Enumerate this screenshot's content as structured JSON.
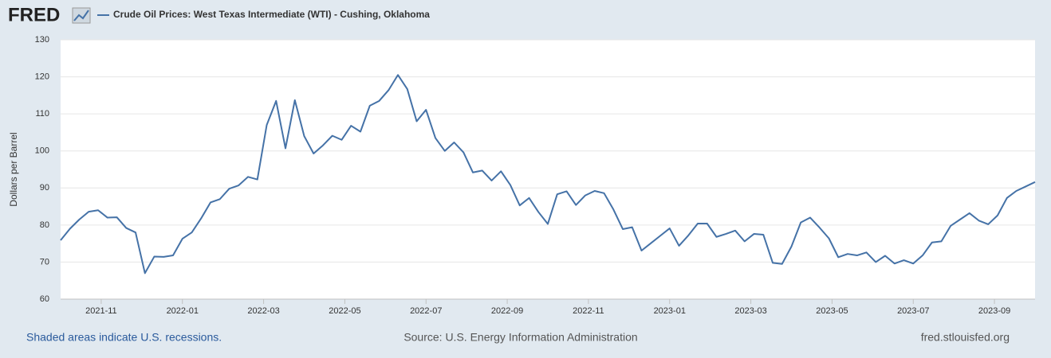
{
  "logo": "FRED",
  "chart_data": {
    "type": "line",
    "y_label": "Dollars per Barrel",
    "xlim": [
      "2021-10",
      "2023-10"
    ],
    "xticks": [
      "2021-11",
      "2022-01",
      "2022-03",
      "2022-05",
      "2022-07",
      "2022-09",
      "2022-11",
      "2023-01",
      "2023-03",
      "2023-05",
      "2023-07",
      "2023-09"
    ],
    "ylim": [
      60,
      130
    ],
    "yticks": [
      60,
      70,
      80,
      90,
      100,
      110,
      120,
      130
    ],
    "grid": true,
    "series": [
      {
        "name": "Crude Oil Prices: West Texas Intermediate (WTI) - Cushing, Oklahoma",
        "color": "#4572a7",
        "values": [
          75.9,
          79,
          81.5,
          83.6,
          84,
          82,
          82.1,
          79.2,
          78,
          67,
          71.5,
          71.4,
          71.8,
          76.3,
          78,
          81.8,
          86.1,
          87,
          89.8,
          90.7,
          93,
          92.3,
          107,
          113.5,
          100.7,
          113.7,
          104,
          99.3,
          101.5,
          104.1,
          103,
          106.8,
          105.2,
          112.2,
          113.5,
          116.4,
          120.5,
          116.7,
          108,
          111.1,
          103.5,
          100,
          102.3,
          99.6,
          94.2,
          94.7,
          92,
          94.5,
          90.8,
          85.3,
          87.3,
          83.5,
          80.3,
          88.3,
          89.1,
          85.4,
          88,
          89.2,
          88.6,
          84.2,
          78.9,
          79.4,
          73.1,
          75.1,
          77.1,
          79.1,
          74.4,
          77.2,
          80.4,
          80.4,
          76.8,
          77.6,
          78.5,
          75.6,
          77.6,
          77.4,
          69.8,
          69.5,
          74.2,
          80.7,
          82,
          79.3,
          76.4,
          71.3,
          72.2,
          71.8,
          72.6,
          70,
          71.7,
          69.6,
          70.5,
          69.6,
          71.8,
          75.3,
          75.6,
          79.8,
          81.5,
          83.2,
          81.2,
          80.2,
          82.6,
          87.3,
          89.2,
          90.4,
          91.6
        ]
      }
    ]
  },
  "footer": {
    "note": "Shaded areas indicate U.S. recessions.",
    "source": "Source: U.S. Energy Information Administration",
    "site": "fred.stlouisfed.org"
  }
}
